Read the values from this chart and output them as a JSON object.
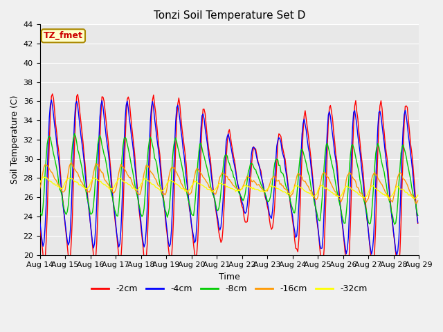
{
  "title": "Tonzi Soil Temperature Set D",
  "xlabel": "Time",
  "ylabel": "Soil Temperature (C)",
  "ylim": [
    20,
    44
  ],
  "xlim": [
    0,
    360
  ],
  "x_tick_labels": [
    "Aug 14",
    "Aug 15",
    "Aug 16",
    "Aug 17",
    "Aug 18",
    "Aug 19",
    "Aug 20",
    "Aug 21",
    "Aug 22",
    "Aug 23",
    "Aug 24",
    "Aug 25",
    "Aug 26",
    "Aug 27",
    "Aug 28",
    "Aug 29"
  ],
  "x_tick_positions": [
    0,
    24,
    48,
    72,
    96,
    120,
    144,
    168,
    192,
    216,
    240,
    264,
    288,
    312,
    336,
    360
  ],
  "legend_label": "TZ_fmet",
  "series_colors": [
    "#ff0000",
    "#0000ff",
    "#00cc00",
    "#ff9900",
    "#ffff00"
  ],
  "series_labels": [
    "-2cm",
    "-4cm",
    "-8cm",
    "-16cm",
    "-32cm"
  ],
  "bg_color": "#e8e8e8",
  "plot_bg_color": "#e8e8e8",
  "fig_bg_color": "#f0f0f0",
  "grid_color": "#ffffff",
  "title_fontsize": 11,
  "label_fontsize": 9,
  "tick_fontsize": 8,
  "legend_fontsize": 9
}
